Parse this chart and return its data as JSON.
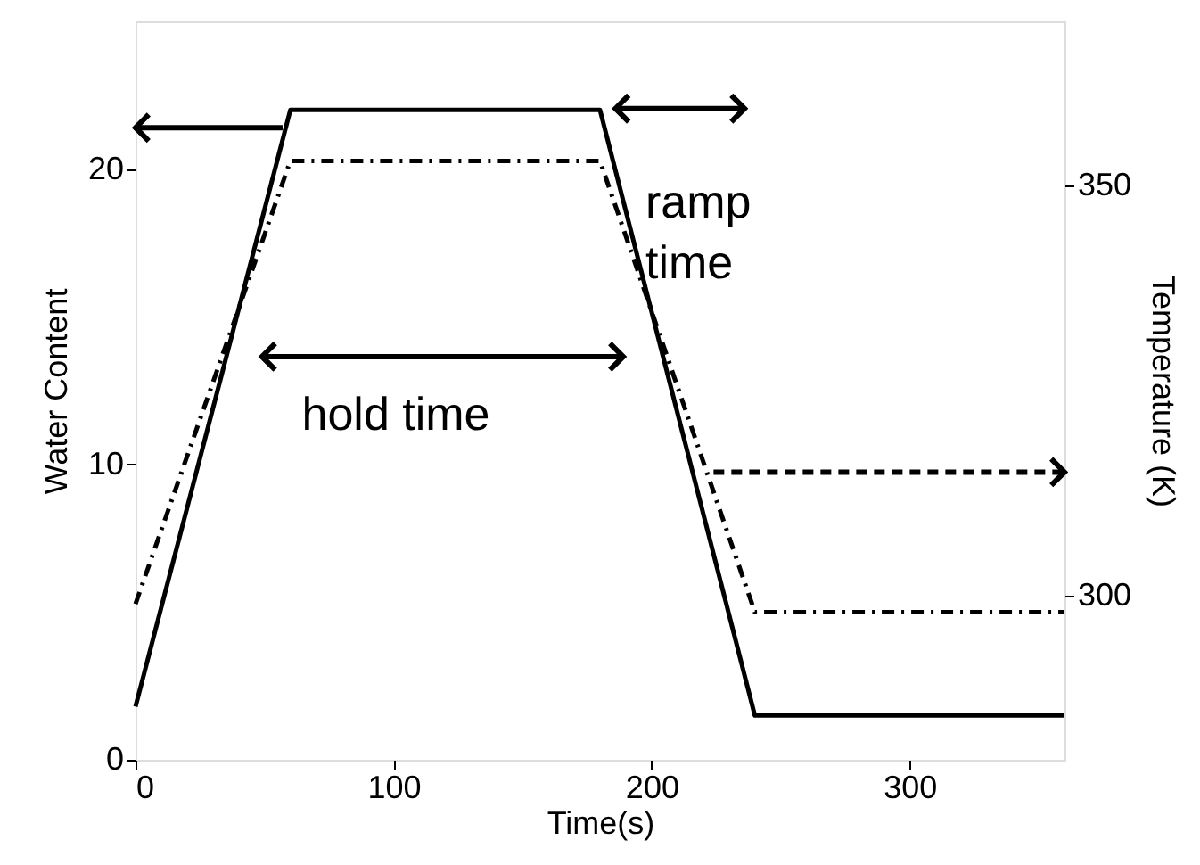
{
  "chart_data": {
    "type": "line",
    "xlabel": "Time(s)",
    "ylabel": "Water Content",
    "y2label": "Temperature (K)",
    "xlim": [
      0,
      360
    ],
    "xticks": [
      0,
      100,
      200,
      300
    ],
    "ylim": [
      0,
      25
    ],
    "yticks": [
      0,
      10,
      20
    ],
    "y2lim": [
      280,
      370
    ],
    "y2ticks": [
      300,
      350
    ],
    "grid": false,
    "marker": "none",
    "series": [
      {
        "x": [
          0,
          60,
          180,
          240,
          360
        ],
        "values": [
          1.8,
          22,
          22,
          1.5,
          1.5
        ],
        "color": "#000000",
        "line_style": "solid"
      },
      {
        "x": [
          0,
          60,
          180,
          240,
          360
        ],
        "values": [
          299,
          353,
          353,
          298,
          298
        ],
        "color": "#000000",
        "line_style": "dashed",
        "axis": "y2"
      }
    ],
    "annotations": [
      "hold time",
      "ramp time"
    ]
  }
}
